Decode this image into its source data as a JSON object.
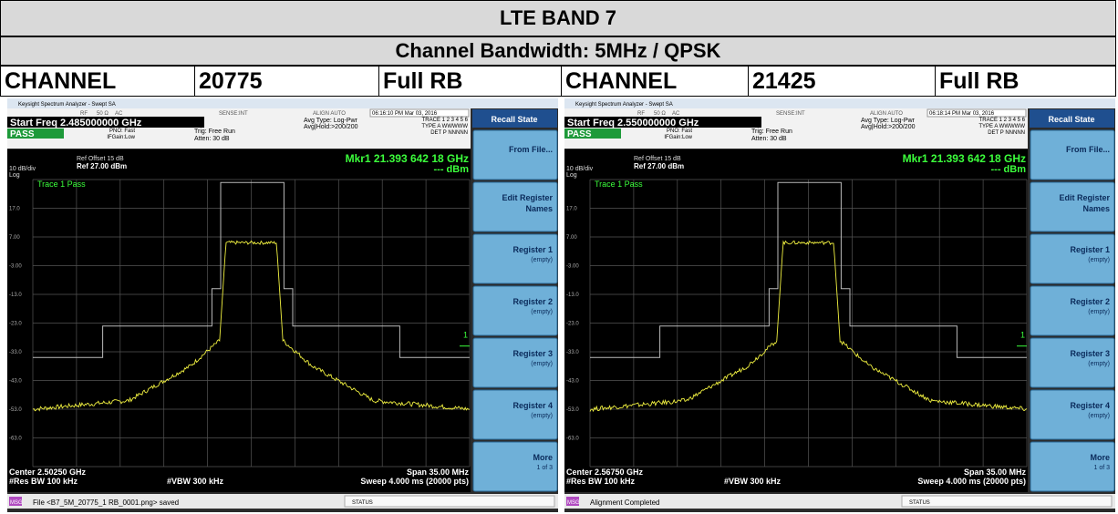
{
  "header": {
    "title": "LTE BAND 7",
    "subtitle": "Channel Bandwidth: 5MHz / QPSK"
  },
  "panels": [
    {
      "label": "CHANNEL",
      "channel": "20775",
      "rb": "Full RB"
    },
    {
      "label": "CHANNEL",
      "channel": "21425",
      "rb": "Full RB"
    }
  ],
  "screens": [
    {
      "app_title": "Keysight Spectrum Analyzer - Swept SA",
      "rf": "RF",
      "ohm": "50 Ω",
      "ac": "AC",
      "sense": "SENSE:INT",
      "align": "ALIGN AUTO",
      "timestamp": "06:16:10 PM Mar 03, 2016",
      "start_freq": "Start Freq 2.485000000 GHz",
      "status": "PASS",
      "pno": "PNO: Fast",
      "ifgain": "IFGain:Low",
      "trig": "Trig: Free Run",
      "atten": "Atten: 30 dB",
      "avg_type": "Avg Type: Log-Pwr",
      "avg_hold": "Avg|Hold:>200/200",
      "trace_row": "TRACE 1 2 3 4 5 6",
      "type_row": "TYPE A WWWWW",
      "det_row": "DET P NNNNN",
      "ref_offset": "Ref Offset 15 dB",
      "ref": "Ref 27.00 dBm",
      "scale": "10 dB/div",
      "log": "Log",
      "marker": "Mkr1 21.393 642 18 GHz",
      "marker_value": "--- dBm",
      "trace_label": "Trace 1 Pass",
      "marker_num": "1",
      "y_labels": [
        "17.0",
        "7.00",
        "-3.00",
        "-13.0",
        "-23.0",
        "-33.0",
        "-43.0",
        "-53.0",
        "-63.0"
      ],
      "center": "Center 2.50250 GHz",
      "res_bw": "#Res BW 100 kHz",
      "vbw": "#VBW 300 kHz",
      "span": "Span 35.00 MHz",
      "sweep": "Sweep  4.000 ms (20000 pts)",
      "msg_tag": "MSG",
      "msg": "File <B7_5M_20775_1 RB_0001.png> saved",
      "status_bar": "STATUS",
      "menu_title": "Recall State",
      "keys": [
        {
          "label": "From File..."
        },
        {
          "label": "Edit Register Names"
        },
        {
          "label": "Register 1",
          "sub": "(empty)"
        },
        {
          "label": "Register 2",
          "sub": "(empty)"
        },
        {
          "label": "Register 3",
          "sub": "(empty)"
        },
        {
          "label": "Register 4",
          "sub": "(empty)"
        },
        {
          "label": "More",
          "sub": "1 of 3"
        }
      ]
    },
    {
      "app_title": "Keysight Spectrum Analyzer - Swept SA",
      "rf": "RF",
      "ohm": "50 Ω",
      "ac": "AC",
      "sense": "SENSE:INT",
      "align": "ALIGN AUTO",
      "timestamp": "06:18:14 PM Mar 03, 2016",
      "start_freq": "Start Freq 2.550000000 GHz",
      "status": "PASS",
      "pno": "PNO: Fast",
      "ifgain": "IFGain:Low",
      "trig": "Trig: Free Run",
      "atten": "Atten: 30 dB",
      "avg_type": "Avg Type: Log-Pwr",
      "avg_hold": "Avg|Hold:>200/200",
      "trace_row": "TRACE 1 2 3 4 5 6",
      "type_row": "TYPE A WWWWW",
      "det_row": "DET P NNNNN",
      "ref_offset": "Ref Offset 15 dB",
      "ref": "Ref 27.00 dBm",
      "scale": "10 dB/div",
      "log": "Log",
      "marker": "Mkr1 21.393 642 18 GHz",
      "marker_value": "--- dBm",
      "trace_label": "Trace 1 Pass",
      "marker_num": "1",
      "y_labels": [
        "17.0",
        "7.00",
        "-3.00",
        "-13.0",
        "-23.0",
        "-33.0",
        "-43.0",
        "-53.0",
        "-63.0"
      ],
      "center": "Center 2.56750 GHz",
      "res_bw": "#Res BW 100 kHz",
      "vbw": "#VBW 300 kHz",
      "span": "Span 35.00 MHz",
      "sweep": "Sweep  4.000 ms (20000 pts)",
      "msg_tag": "MSG",
      "msg": "Alignment Completed",
      "status_bar": "STATUS",
      "menu_title": "Recall State",
      "keys": [
        {
          "label": "From File..."
        },
        {
          "label": "Edit Register Names"
        },
        {
          "label": "Register 1",
          "sub": "(empty)"
        },
        {
          "label": "Register 2",
          "sub": "(empty)"
        },
        {
          "label": "Register 3",
          "sub": "(empty)"
        },
        {
          "label": "Register 4",
          "sub": "(empty)"
        },
        {
          "label": "More",
          "sub": "1 of 3"
        }
      ]
    }
  ]
}
